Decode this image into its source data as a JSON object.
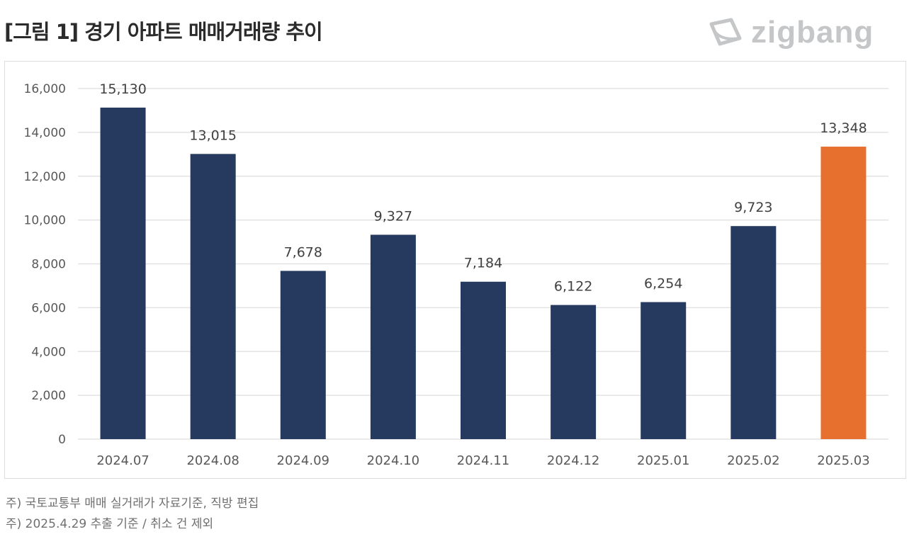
{
  "header": {
    "title": "[그림 1] 경기 아파트 매매거래량 추이",
    "logo_text": "zigbang"
  },
  "footnotes": [
    "주) 국토교통부 매매 실거래가 자료기준, 직방 편집",
    "주) 2025.4.29 추출 기준 / 취소 건 제외"
  ],
  "colors": {
    "bar": "#263a5f",
    "highlight": "#e8702e",
    "grid": "#e3e3e3",
    "tick_text": "#595959",
    "label_text": "#404040"
  },
  "chart_data": {
    "type": "bar",
    "title": "",
    "xlabel": "",
    "ylabel": "",
    "categories": [
      "2024.07",
      "2024.08",
      "2024.09",
      "2024.10",
      "2024.11",
      "2024.12",
      "2025.01",
      "2025.02",
      "2025.03"
    ],
    "values": [
      15130,
      13015,
      7678,
      9327,
      7184,
      6122,
      6254,
      9723,
      13348
    ],
    "value_labels": [
      "15,130",
      "13,015",
      "7,678",
      "9,327",
      "7,184",
      "6,122",
      "6,254",
      "9,723",
      "13,348"
    ],
    "highlight_category": "2025.03",
    "ylim": [
      0,
      16000
    ],
    "yticks": [
      0,
      2000,
      4000,
      6000,
      8000,
      10000,
      12000,
      14000,
      16000
    ],
    "ytick_labels": [
      "0",
      "2,000",
      "4,000",
      "6,000",
      "8,000",
      "10,000",
      "12,000",
      "14,000",
      "16,000"
    ],
    "grid": true,
    "legend": "none"
  }
}
